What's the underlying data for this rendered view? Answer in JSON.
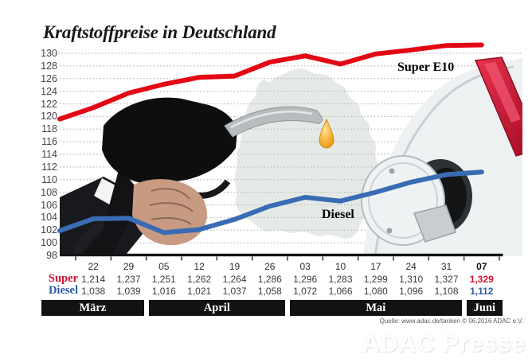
{
  "title": "Kraftstoffpreise in Deutschland",
  "labels": {
    "super": "Super E10",
    "diesel": "Diesel"
  },
  "colors": {
    "super_line": "#e30613",
    "super_text": "#d6102f",
    "diesel_line": "#3a6cb4",
    "diesel_text": "#2d5ca8",
    "grid": "#b9bcb9",
    "axis": "#141414",
    "month_bar": "#121212",
    "drop": "#f0a126"
  },
  "chart_data": {
    "type": "line",
    "title": "Kraftstoffpreise in Deutschland",
    "x": [
      "22",
      "29",
      "05",
      "12",
      "19",
      "26",
      "03",
      "10",
      "17",
      "24",
      "31",
      "07"
    ],
    "series": [
      {
        "name": "Super E10",
        "key": "super",
        "values": [
          121.4,
          123.7,
          125.1,
          126.2,
          126.4,
          128.6,
          129.6,
          128.3,
          129.9,
          131.0,
          132.7,
          132.9
        ],
        "lead_in": 119.6
      },
      {
        "name": "Diesel",
        "key": "diesel",
        "values": [
          103.8,
          103.9,
          101.6,
          102.1,
          103.7,
          105.8,
          107.2,
          106.6,
          108.0,
          109.6,
          110.8,
          111.2
        ],
        "lead_in": 101.9
      }
    ],
    "ylim": [
      98,
      130
    ],
    "ytick_step": 2,
    "grid": "dotted horizontal",
    "legend_position": "inline labels on lines",
    "months": [
      {
        "label": "März",
        "cols": 2
      },
      {
        "label": "April",
        "cols": 4
      },
      {
        "label": "Mai",
        "cols": 5
      },
      {
        "label": "Juni",
        "cols": 1
      }
    ]
  },
  "table": {
    "dates": [
      "22",
      "29",
      "05",
      "12",
      "19",
      "26",
      "03",
      "10",
      "17",
      "24",
      "31",
      "07"
    ],
    "rows": [
      {
        "label": "Super",
        "key": "super",
        "values": [
          "1,214",
          "1,237",
          "1,251",
          "1,262",
          "1,264",
          "1,286",
          "1,296",
          "1,283",
          "1,299",
          "1,310",
          "1,327",
          "1,329"
        ]
      },
      {
        "label": "Diesel",
        "key": "diesel",
        "values": [
          "1,038",
          "1,039",
          "1,016",
          "1,021",
          "1,037",
          "1,058",
          "1,072",
          "1,066",
          "1,080",
          "1,096",
          "1,108",
          "1,112"
        ]
      }
    ]
  },
  "source": "Quelle: www.adac.de/tanken   © 06.2016   ADAC e.V.",
  "watermark": "ADAC Presse"
}
